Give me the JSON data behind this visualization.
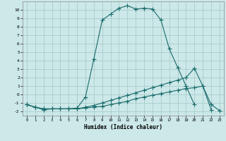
{
  "xlabel": "Humidex (Indice chaleur)",
  "background_color": "#cce8e8",
  "grid_color": "#aacccc",
  "line_color": "#1a6b6b",
  "xlim": [
    -0.5,
    23.5
  ],
  "ylim": [
    -2.5,
    11.0
  ],
  "xticks": [
    0,
    1,
    2,
    3,
    4,
    5,
    6,
    7,
    8,
    9,
    10,
    11,
    12,
    13,
    14,
    15,
    16,
    17,
    18,
    19,
    20,
    21,
    22,
    23
  ],
  "yticks": [
    -2,
    -1,
    0,
    1,
    2,
    3,
    4,
    5,
    6,
    7,
    8,
    9,
    10
  ],
  "curve1_x": [
    0,
    1,
    2,
    3,
    4,
    5,
    6,
    7,
    8,
    9,
    10,
    11,
    12,
    13,
    14,
    15,
    16,
    17,
    18,
    19,
    20
  ],
  "curve1_y": [
    -1.2,
    -1.5,
    -1.8,
    -1.7,
    -1.7,
    -1.7,
    -1.6,
    -0.3,
    4.2,
    8.8,
    9.5,
    10.2,
    10.5,
    10.1,
    10.2,
    10.1,
    8.8,
    5.4,
    3.2,
    1.0,
    -1.2
  ],
  "curve2_x": [
    0,
    1,
    2,
    3,
    4,
    5,
    6,
    7,
    8,
    9,
    10,
    11,
    12,
    13,
    14,
    15,
    16,
    17,
    18,
    19,
    20,
    21,
    22
  ],
  "curve2_y": [
    -1.2,
    -1.5,
    -1.7,
    -1.7,
    -1.7,
    -1.7,
    -1.7,
    -1.5,
    -1.3,
    -1.0,
    -0.7,
    -0.4,
    -0.1,
    0.2,
    0.5,
    0.8,
    1.1,
    1.4,
    1.7,
    2.0,
    3.1,
    1.0,
    -1.8
  ],
  "curve3_x": [
    0,
    1,
    2,
    3,
    4,
    5,
    6,
    7,
    8,
    9,
    10,
    11,
    12,
    13,
    14,
    15,
    16,
    17,
    18,
    19,
    20,
    21,
    22,
    23
  ],
  "curve3_y": [
    -1.2,
    -1.5,
    -1.7,
    -1.7,
    -1.7,
    -1.7,
    -1.7,
    -1.6,
    -1.5,
    -1.4,
    -1.2,
    -1.0,
    -0.8,
    -0.5,
    -0.3,
    -0.1,
    0.1,
    0.3,
    0.5,
    0.7,
    0.8,
    1.0,
    -1.2,
    -1.9
  ]
}
